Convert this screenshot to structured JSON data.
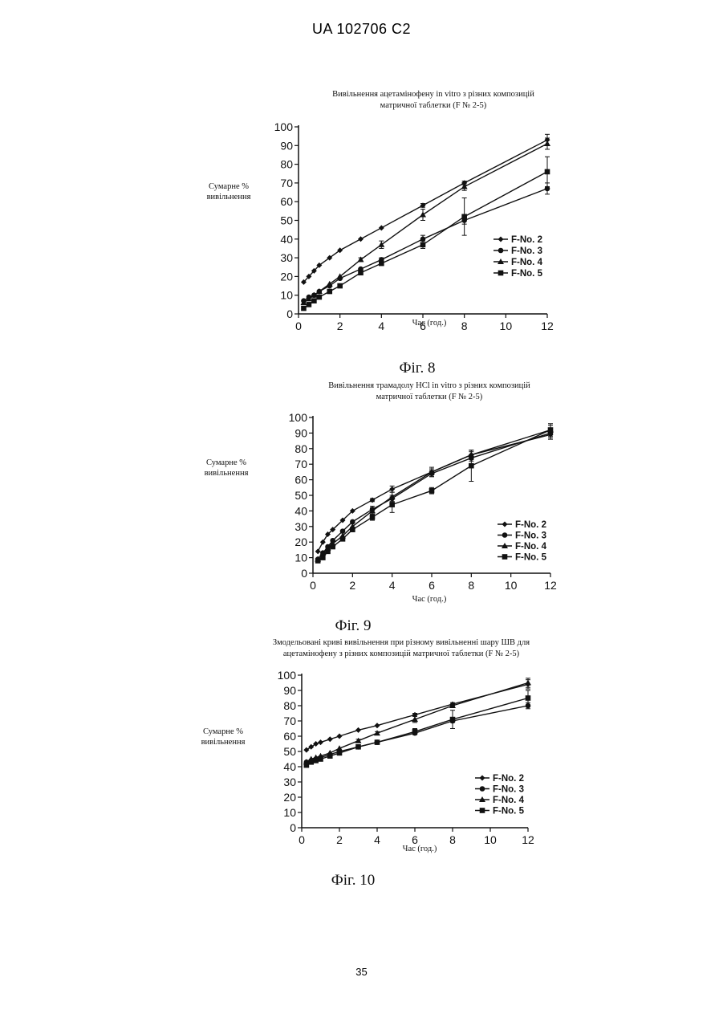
{
  "header": {
    "text": "UA   102706   C2"
  },
  "page_number": "35",
  "figures": [
    {
      "caption": "Фіг. 8"
    },
    {
      "caption": "Фіг. 9"
    },
    {
      "caption": "Фіг. 10"
    }
  ],
  "chart_data": [
    {
      "type": "line",
      "title": [
        "Вивільнення ацетамінофену in vitro з різних композицій",
        "матричної таблетки (F № 2-5)"
      ],
      "xlabel": "Час (год.)",
      "ylabel": [
        "Сумарне %",
        "вивільнення"
      ],
      "xlim": [
        0,
        12
      ],
      "ylim": [
        0,
        100
      ],
      "xticks": [
        0,
        2,
        4,
        6,
        8,
        10,
        12
      ],
      "yticks": [
        0,
        10,
        20,
        30,
        40,
        50,
        60,
        70,
        80,
        90,
        100
      ],
      "legend_position": "bottom-right",
      "series": [
        {
          "name": "F-No. 2",
          "marker": "diamond",
          "x": [
            0.25,
            0.5,
            0.75,
            1,
            1.5,
            2,
            3,
            4,
            6,
            8,
            12
          ],
          "y": [
            17,
            20,
            23,
            26,
            30,
            34,
            40,
            46,
            58,
            70,
            93
          ],
          "err": [
            0,
            0,
            0,
            0,
            0,
            0,
            0,
            0,
            1,
            1,
            3
          ]
        },
        {
          "name": "F-No. 3",
          "marker": "circle",
          "x": [
            0.25,
            0.5,
            0.75,
            1,
            1.5,
            2,
            3,
            4,
            6,
            8,
            12
          ],
          "y": [
            7,
            9,
            10,
            12,
            15,
            19,
            24,
            29,
            40,
            50,
            67
          ],
          "err": [
            0,
            0,
            0,
            0,
            0,
            0,
            0,
            1,
            2,
            2,
            3
          ]
        },
        {
          "name": "F-No. 4",
          "marker": "triangle",
          "x": [
            0.25,
            0.5,
            0.75,
            1,
            1.5,
            2,
            3,
            4,
            6,
            8,
            12
          ],
          "y": [
            6,
            8,
            10,
            12,
            16,
            20,
            29,
            37,
            53,
            68,
            91
          ],
          "err": [
            0,
            0,
            0,
            0,
            0,
            0,
            1,
            2,
            3,
            2,
            3
          ]
        },
        {
          "name": "F-No. 5",
          "marker": "square",
          "x": [
            0.25,
            0.5,
            0.75,
            1,
            1.5,
            2,
            3,
            4,
            6,
            8,
            12
          ],
          "y": [
            3,
            5,
            7,
            9,
            12,
            15,
            22,
            27,
            37,
            52,
            76
          ],
          "err": [
            0,
            0,
            0,
            0,
            0,
            0,
            1,
            1,
            2,
            10,
            8
          ]
        }
      ]
    },
    {
      "type": "line",
      "title": [
        "Вивільнення трамадолу HCl in vitro з різних композицій",
        "матричної таблетки (F № 2-5)"
      ],
      "xlabel": "Час (год.)",
      "ylabel": [
        "Сумарне %",
        "вивільнення"
      ],
      "xlim": [
        0,
        12
      ],
      "ylim": [
        0,
        100
      ],
      "xticks": [
        0,
        2,
        4,
        6,
        8,
        10,
        12
      ],
      "yticks": [
        0,
        10,
        20,
        30,
        40,
        50,
        60,
        70,
        80,
        90,
        100
      ],
      "legend_position": "bottom-right",
      "series": [
        {
          "name": "F-No. 2",
          "marker": "diamond",
          "x": [
            0.25,
            0.5,
            0.75,
            1,
            1.5,
            2,
            3,
            4,
            6,
            8,
            12
          ],
          "y": [
            14,
            20,
            25,
            28,
            34,
            40,
            47,
            54,
            65,
            76,
            89
          ],
          "err": [
            0,
            0,
            0,
            0,
            0,
            0,
            1,
            2,
            2,
            2,
            3
          ]
        },
        {
          "name": "F-No. 3",
          "marker": "circle",
          "x": [
            0.25,
            0.5,
            0.75,
            1,
            1.5,
            2,
            3,
            4,
            6,
            8,
            12
          ],
          "y": [
            9,
            13,
            17,
            21,
            27,
            33,
            41,
            48,
            64,
            74,
            90
          ],
          "err": [
            0,
            0,
            0,
            0,
            0,
            0,
            2,
            2,
            2,
            2,
            3
          ]
        },
        {
          "name": "F-No. 4",
          "marker": "triangle",
          "x": [
            0.25,
            0.5,
            0.75,
            1,
            1.5,
            2,
            3,
            4,
            6,
            8,
            12
          ],
          "y": [
            9,
            13,
            16,
            19,
            24,
            30,
            40,
            49,
            65,
            76,
            92
          ],
          "err": [
            0,
            0,
            0,
            0,
            0,
            0,
            2,
            3,
            3,
            3,
            3
          ]
        },
        {
          "name": "F-No. 5",
          "marker": "square",
          "x": [
            0.25,
            0.5,
            0.75,
            1,
            1.5,
            2,
            3,
            4,
            6,
            8,
            12
          ],
          "y": [
            8,
            10,
            14,
            17,
            22,
            28,
            36,
            44,
            53,
            69,
            92
          ],
          "err": [
            0,
            0,
            0,
            0,
            0,
            0,
            2,
            5,
            2,
            10,
            4
          ]
        }
      ]
    },
    {
      "type": "line",
      "title": [
        "Змодельовані криві вивільнення при різному вивільненні шару ШВ для",
        "ацетамінофену з різних композицій матричної таблетки (F № 2-5)"
      ],
      "xlabel": "Час (год.)",
      "ylabel": [
        "Сумарне %",
        "вивільнення"
      ],
      "xlim": [
        0,
        12
      ],
      "ylim": [
        0,
        100
      ],
      "xticks": [
        0,
        2,
        4,
        6,
        8,
        10,
        12
      ],
      "yticks": [
        0,
        10,
        20,
        30,
        40,
        50,
        60,
        70,
        80,
        90,
        100
      ],
      "legend_position": "bottom-right",
      "series": [
        {
          "name": "F-No. 2",
          "marker": "diamond",
          "x": [
            0.25,
            0.5,
            0.75,
            1,
            1.5,
            2,
            3,
            4,
            6,
            8,
            12
          ],
          "y": [
            51,
            53,
            55,
            56,
            58,
            60,
            64,
            67,
            74,
            81,
            94
          ],
          "err": [
            0,
            0,
            0,
            0,
            0,
            0,
            0,
            0,
            1,
            1,
            3
          ]
        },
        {
          "name": "F-No. 3",
          "marker": "circle",
          "x": [
            0.25,
            0.5,
            0.75,
            1,
            1.5,
            2,
            3,
            4,
            6,
            8,
            12
          ],
          "y": [
            43,
            44,
            45,
            46,
            48,
            50,
            53,
            56,
            62,
            70,
            80
          ],
          "err": [
            0,
            0,
            0,
            0,
            0,
            0,
            0,
            1,
            1,
            1,
            2
          ]
        },
        {
          "name": "F-No. 4",
          "marker": "triangle",
          "x": [
            0.25,
            0.5,
            0.75,
            1,
            1.5,
            2,
            3,
            4,
            6,
            8,
            12
          ],
          "y": [
            43,
            45,
            46,
            47,
            49,
            52,
            57,
            62,
            71,
            80,
            95
          ],
          "err": [
            0,
            0,
            0,
            0,
            0,
            0,
            1,
            1,
            2,
            1,
            3
          ]
        },
        {
          "name": "F-No. 5",
          "marker": "square",
          "x": [
            0.25,
            0.5,
            0.75,
            1,
            1.5,
            2,
            3,
            4,
            6,
            8,
            12
          ],
          "y": [
            41,
            43,
            44,
            45,
            47,
            49,
            53,
            56,
            63,
            71,
            85
          ],
          "err": [
            0,
            0,
            0,
            0,
            0,
            0,
            1,
            1,
            2,
            6,
            5
          ]
        }
      ]
    }
  ]
}
